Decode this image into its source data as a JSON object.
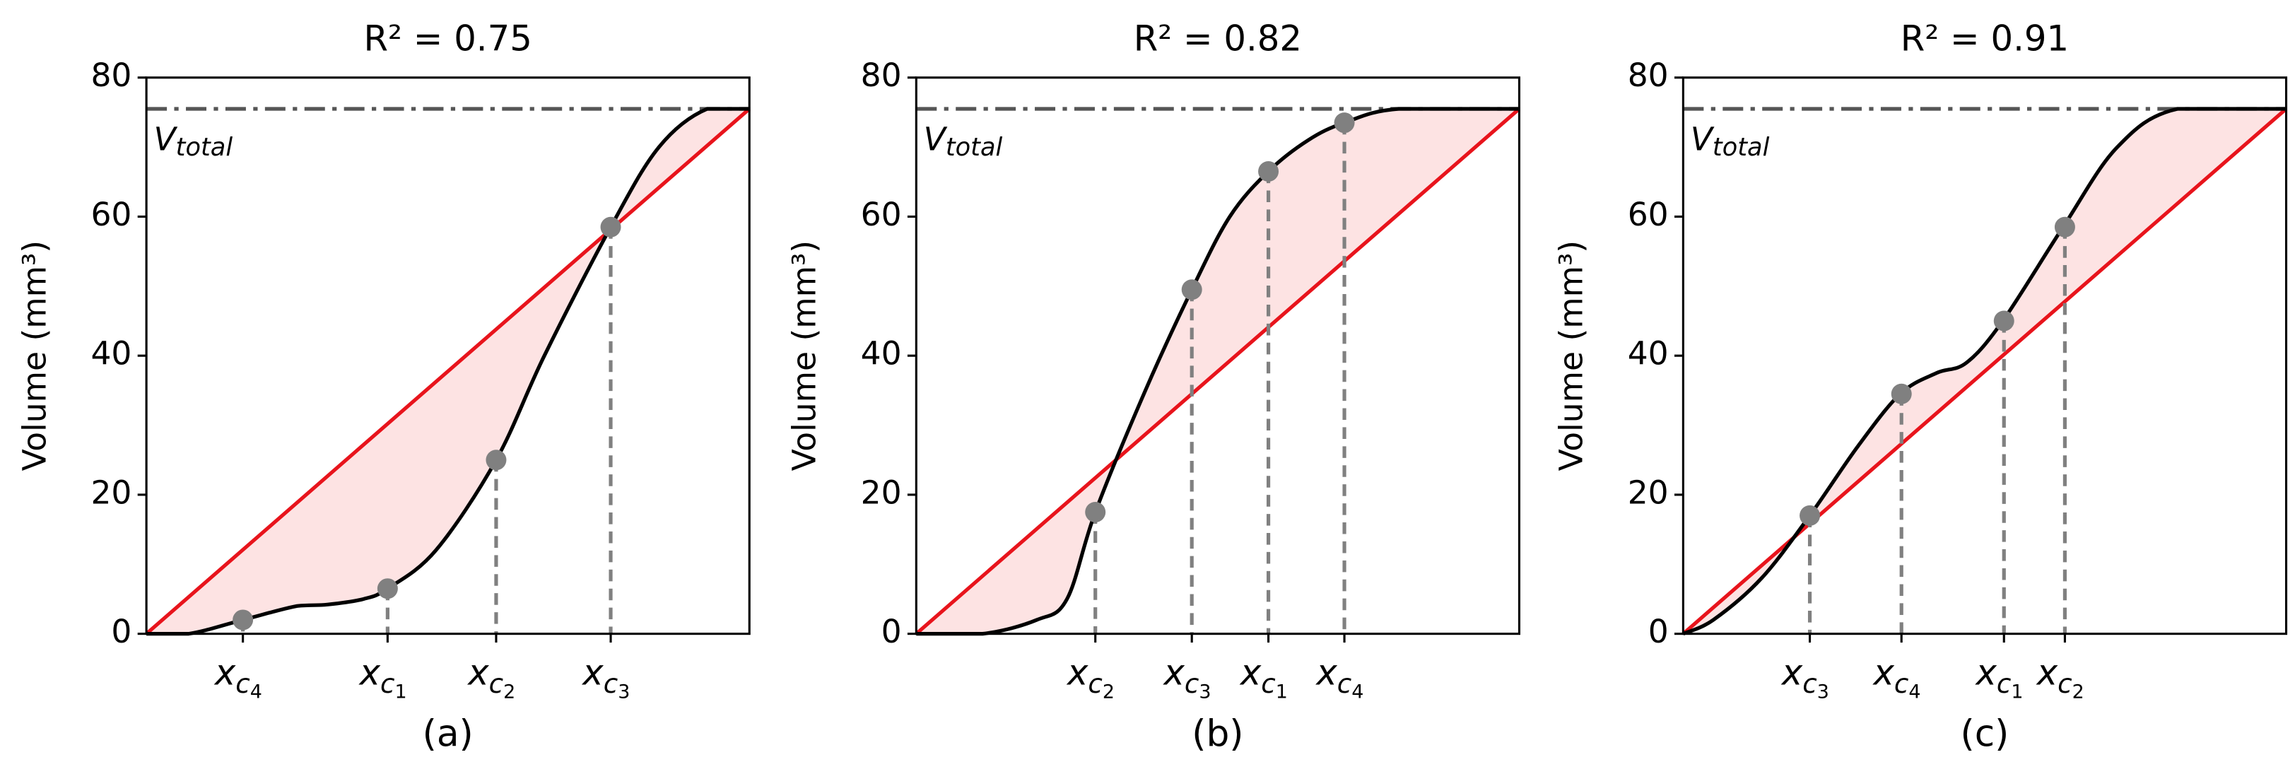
{
  "chart_data": [
    {
      "type": "line",
      "title": "R² = 0.75",
      "ylabel": "Volume (mm³)",
      "caption": "(a)",
      "xlim": [
        0,
        100
      ],
      "ylim": [
        0,
        80
      ],
      "yticks": [
        0,
        20,
        40,
        60,
        80
      ],
      "v_total": {
        "value": 75.5,
        "label": {
          "text": "V",
          "sub": "total"
        },
        "color": "#555555"
      },
      "fit": {
        "x": [
          0,
          100
        ],
        "values": [
          0,
          75.5
        ],
        "color": "#e8141c"
      },
      "fill_color": "#fde3e3",
      "curve": {
        "x": [
          0,
          7,
          16,
          25,
          30,
          36,
          40,
          48,
          58,
          66,
          77,
          85,
          93,
          100
        ],
        "values": [
          0,
          0,
          2,
          4,
          4.2,
          5,
          6.5,
          12,
          25,
          40,
          58.5,
          70,
          75.5,
          75.5
        ],
        "color": "#000000"
      },
      "points": {
        "x": [
          16,
          40,
          58,
          77
        ],
        "values": [
          2,
          6.5,
          25,
          58.5
        ],
        "color": "#808080",
        "labels": [
          {
            "text": "x",
            "sub": "c",
            "subsub": "4"
          },
          {
            "text": "x",
            "sub": "c",
            "subsub": "1"
          },
          {
            "text": "x",
            "sub": "c",
            "subsub": "2"
          },
          {
            "text": "x",
            "sub": "c",
            "subsub": "3"
          }
        ]
      }
    },
    {
      "type": "line",
      "title": "R² = 0.82",
      "ylabel": "Volume (mm³)",
      "caption": "(b)",
      "xlim": [
        0,
        100
      ],
      "ylim": [
        0,
        80
      ],
      "yticks": [
        0,
        20,
        40,
        60,
        80
      ],
      "v_total": {
        "value": 75.5,
        "label": {
          "text": "V",
          "sub": "total"
        },
        "color": "#555555"
      },
      "fit": {
        "x": [
          0,
          100
        ],
        "values": [
          0,
          75.5
        ],
        "color": "#e8141c"
      },
      "fill_color": "#fde3e3",
      "curve": {
        "x": [
          0,
          11,
          20,
          25,
          29.7,
          38,
          45.7,
          52,
          58.4,
          65,
          71,
          80,
          100
        ],
        "values": [
          0,
          0,
          2,
          5,
          17.5,
          35,
          49.5,
          60,
          66.5,
          71,
          73.5,
          75.5,
          75.5
        ],
        "color": "#000000"
      },
      "points": {
        "x": [
          29.7,
          45.7,
          58.4,
          71
        ],
        "values": [
          17.5,
          49.5,
          66.5,
          73.5
        ],
        "color": "#808080",
        "labels": [
          {
            "text": "x",
            "sub": "c",
            "subsub": "2"
          },
          {
            "text": "x",
            "sub": "c",
            "subsub": "3"
          },
          {
            "text": "x",
            "sub": "c",
            "subsub": "1"
          },
          {
            "text": "x",
            "sub": "c",
            "subsub": "4"
          }
        ]
      }
    },
    {
      "type": "line",
      "title": "R² = 0.91",
      "ylabel": "Volume (mm³)",
      "caption": "(c)",
      "xlim": [
        0,
        100
      ],
      "ylim": [
        0,
        80
      ],
      "yticks": [
        0,
        20,
        40,
        60,
        80
      ],
      "v_total": {
        "value": 75.5,
        "label": {
          "text": "V",
          "sub": "total"
        },
        "color": "#555555"
      },
      "fit": {
        "x": [
          0,
          100
        ],
        "values": [
          0,
          75.5
        ],
        "color": "#e8141c"
      },
      "fill_color": "#fde3e3",
      "curve": {
        "x": [
          0,
          5,
          13,
          21,
          29,
          36,
          42,
          47,
          53,
          63,
          72,
          82,
          100
        ],
        "values": [
          0,
          2,
          8,
          17,
          27,
          34.5,
          37.5,
          39,
          45,
          58.5,
          70,
          75.5,
          75.5
        ],
        "color": "#000000"
      },
      "points": {
        "x": [
          21,
          36.2,
          53.2,
          63.3
        ],
        "values": [
          17,
          34.5,
          45,
          58.5
        ],
        "color": "#808080",
        "labels": [
          {
            "text": "x",
            "sub": "c",
            "subsub": "3"
          },
          {
            "text": "x",
            "sub": "c",
            "subsub": "4"
          },
          {
            "text": "x",
            "sub": "c",
            "subsub": "1"
          },
          {
            "text": "x",
            "sub": "c",
            "subsub": "2"
          }
        ]
      }
    }
  ]
}
